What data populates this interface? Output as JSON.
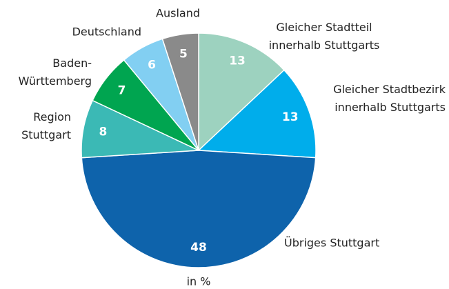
{
  "chart_data": {
    "type": "pie",
    "categories": [
      "Gleicher Stadtteil\ninnerhalb Stuttgarts",
      "Gleicher Stadtbezirk\ninnerhalb Stuttgarts",
      "Übriges Stuttgart",
      "Region\nStuttgart",
      "Baden-\nWürttemberg",
      "Deutschland",
      "Ausland"
    ],
    "values": [
      13,
      13,
      48,
      8,
      7,
      6,
      5
    ],
    "colors": [
      "#9dd2bf",
      "#00adeb",
      "#0e63ab",
      "#3bb9b5",
      "#00a550",
      "#82cff2",
      "#8a8a8a"
    ],
    "unit_label": "in %"
  }
}
